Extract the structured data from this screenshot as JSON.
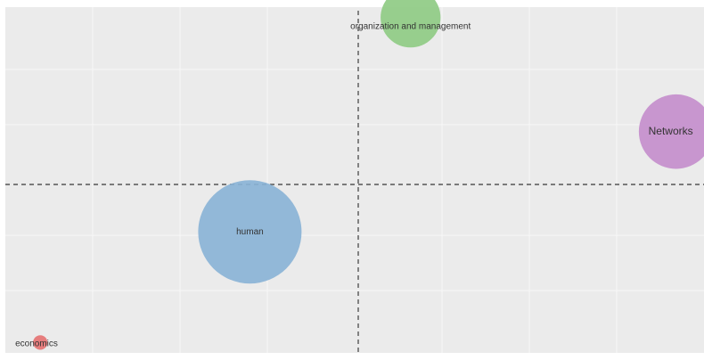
{
  "chart_data": {
    "type": "scatter",
    "subtype": "bubble",
    "title": "",
    "xlabel": "",
    "ylabel": "",
    "grid": true,
    "quadrant_dividers": true,
    "background_color": "#EBEBEB",
    "grid_color": "#F7F7F7",
    "divider_color": "#555555",
    "series": [
      {
        "name": "",
        "label": "organization and management",
        "x": 0.58,
        "y": 0.97,
        "size": 0.58,
        "color": "#8FCB84"
      },
      {
        "name": "",
        "label": "Networks",
        "x": 0.96,
        "y": 0.64,
        "size": 0.72,
        "color": "#C48ECC"
      },
      {
        "name": "",
        "label": "human",
        "x": 0.35,
        "y": 0.35,
        "size": 1.0,
        "color": "#8AB3D6"
      },
      {
        "name": "",
        "label": "economics",
        "x": 0.05,
        "y": 0.03,
        "size": 0.14,
        "color": "#E57373"
      }
    ]
  }
}
